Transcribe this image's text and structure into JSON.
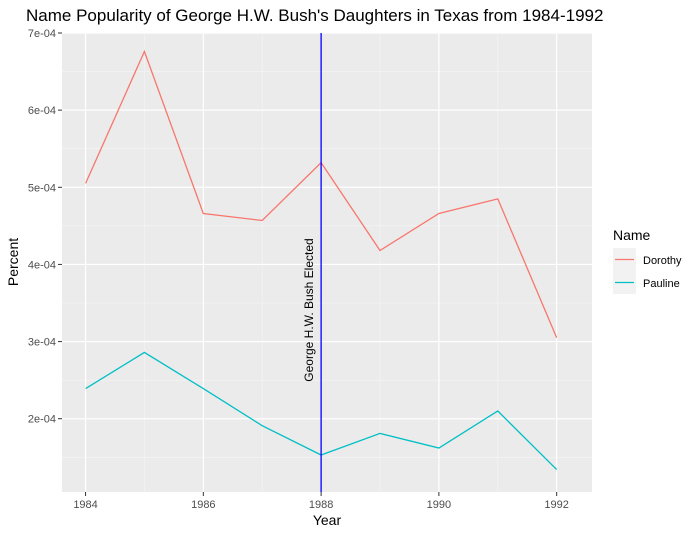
{
  "chart_data": {
    "type": "line",
    "title": "Name Popularity of George H.W. Bush's Daughters in Texas from 1984-1992",
    "xlabel": "Year",
    "ylabel": "Percent",
    "x": [
      1984,
      1985,
      1986,
      1987,
      1988,
      1989,
      1990,
      1991,
      1992
    ],
    "xlim": [
      1983.6,
      1992.6
    ],
    "ylim": [
      0.000105,
      0.0007
    ],
    "x_ticks": [
      1984,
      1986,
      1988,
      1990,
      1992
    ],
    "x_tick_labels": [
      "1984",
      "1986",
      "1988",
      "1990",
      "1992"
    ],
    "y_ticks": [
      0.0002,
      0.0003,
      0.0004,
      0.0005,
      0.0006,
      0.0007
    ],
    "y_tick_labels": [
      "2e-04",
      "3e-04",
      "4e-04",
      "5e-04",
      "6e-04",
      "7e-04"
    ],
    "grid": true,
    "legend_title": "Name",
    "legend_position": "right",
    "series": [
      {
        "name": "Dorothy",
        "color": "#F8766D",
        "values": [
          0.000505,
          0.000676,
          0.000466,
          0.000457,
          0.000532,
          0.000418,
          0.000466,
          0.000485,
          0.000305
        ]
      },
      {
        "name": "Pauline",
        "color": "#00BFC4",
        "values": [
          0.000239,
          0.000286,
          0.000239,
          0.000191,
          0.000153,
          0.000181,
          0.000162,
          0.00021,
          0.000134
        ]
      }
    ],
    "annotations": [
      {
        "type": "vline",
        "x": 1988,
        "color": "#0000FF",
        "label": "George H.W. Bush Elected"
      }
    ]
  }
}
